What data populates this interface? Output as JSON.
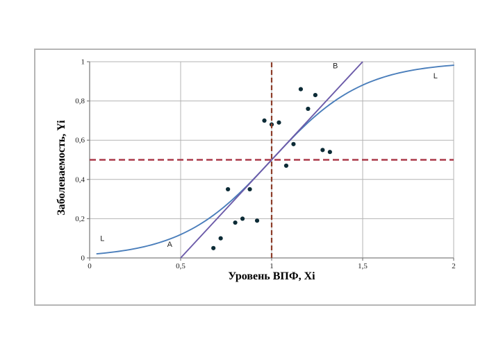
{
  "chart_data": {
    "type": "scatter",
    "title": "",
    "xlabel": "Уровень ВПФ, Xi",
    "ylabel": "Заболеваемость, Yi",
    "xlim": [
      0,
      2
    ],
    "ylim": [
      0,
      1
    ],
    "grid": true,
    "legend_position": "none",
    "x_ticks": [
      "0",
      "0,5",
      "1",
      "1,5",
      "2"
    ],
    "x_tick_values": [
      0,
      0.5,
      1,
      1.5,
      2
    ],
    "y_ticks": [
      "0",
      "0,2",
      "0,4",
      "0,6",
      "0,8",
      "1"
    ],
    "y_tick_values": [
      0,
      0.2,
      0.4,
      0.6,
      0.8,
      1
    ],
    "series": [
      {
        "name": "observed-points",
        "kind": "scatter",
        "color": "#0c2b36",
        "marker_radius": 3.1,
        "points": [
          [
            0.68,
            0.05
          ],
          [
            0.72,
            0.1
          ],
          [
            0.76,
            0.35
          ],
          [
            0.8,
            0.18
          ],
          [
            0.84,
            0.2
          ],
          [
            0.88,
            0.35
          ],
          [
            0.92,
            0.19
          ],
          [
            0.96,
            0.7
          ],
          [
            1.0,
            0.68
          ],
          [
            1.04,
            0.69
          ],
          [
            1.08,
            0.47
          ],
          [
            1.12,
            0.58
          ],
          [
            1.16,
            0.86
          ],
          [
            1.2,
            0.76
          ],
          [
            1.24,
            0.83
          ],
          [
            1.28,
            0.55
          ],
          [
            1.32,
            0.54
          ]
        ]
      },
      {
        "name": "logistic-curve-L",
        "kind": "logistic",
        "color": "#4a7ebb",
        "width": 1.9,
        "k": 4,
        "x0": 1,
        "x_start": 0.04,
        "x_end": 2
      },
      {
        "name": "line-B",
        "kind": "segment",
        "color": "#6c5ba9",
        "width": 1.9,
        "from": [
          0.5,
          0
        ],
        "to": [
          1.5,
          1
        ]
      },
      {
        "name": "threshold-horizontal-0.5",
        "kind": "hline-dashed",
        "color": "#ab3a4a",
        "width": 2.6,
        "dash": "9,5",
        "y": 0.5
      },
      {
        "name": "threshold-vertical-1",
        "kind": "vline-dashed",
        "color": "#8c3c28",
        "width": 2.2,
        "dash": "7,4",
        "x": 1
      }
    ],
    "annotations": [
      {
        "text": "L",
        "x": 0.07,
        "y": 0.1
      },
      {
        "text": "A",
        "x": 0.44,
        "y": 0.07
      },
      {
        "text": "B",
        "x": 1.35,
        "y": 0.98
      },
      {
        "text": "L",
        "x": 1.9,
        "y": 0.93
      }
    ],
    "colors": {
      "gridline": "#b3b3b3",
      "axis": "#7f7f7f",
      "frame_border": "#b5b5b5",
      "background": "#ffffff"
    }
  }
}
